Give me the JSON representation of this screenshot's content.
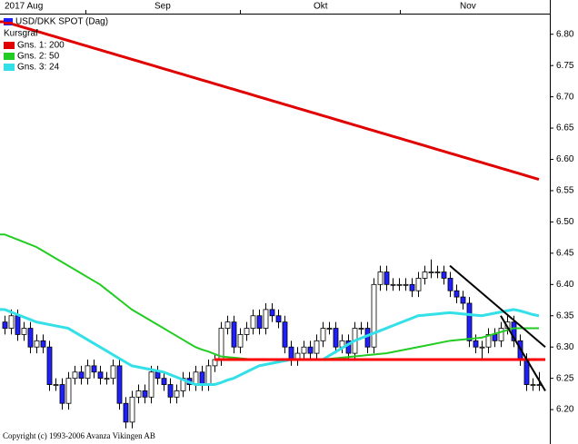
{
  "chart_data": {
    "type": "candlestick",
    "title": "USD/DKK SPOT (Dag)",
    "legend_heading": "Kursgraf",
    "copyright": "Copyright (c) 1993-2006 Avanza Vikingen AB",
    "categories": [
      "2017 Aug",
      null,
      null,
      null,
      null,
      null,
      null,
      null,
      null,
      null,
      null,
      null,
      null,
      null,
      null,
      null,
      null,
      null,
      null,
      null,
      null,
      null,
      null,
      null,
      "Sep",
      null,
      null,
      null,
      null,
      null,
      null,
      null,
      null,
      null,
      null,
      null,
      null,
      null,
      null,
      null,
      null,
      null,
      null,
      null,
      null,
      null,
      null,
      null,
      null,
      "Okt",
      null,
      null,
      null,
      null,
      null,
      null,
      null,
      null,
      null,
      null,
      null,
      null,
      null,
      null,
      null,
      null,
      null,
      null,
      null,
      null,
      null,
      null,
      "Nov",
      null,
      null,
      null,
      null,
      null,
      null,
      null,
      null,
      null,
      null,
      null,
      null
    ],
    "open": [
      6.34,
      6.33,
      6.35,
      6.32,
      6.33,
      6.3,
      6.31,
      6.3,
      6.24,
      6.24,
      6.21,
      6.25,
      6.26,
      6.25,
      6.27,
      6.26,
      6.25,
      6.25,
      6.27,
      6.21,
      6.18,
      6.22,
      6.23,
      6.22,
      6.26,
      6.25,
      6.24,
      6.22,
      6.23,
      6.25,
      6.24,
      6.26,
      6.24,
      6.27,
      6.28,
      6.33,
      6.34,
      6.3,
      6.32,
      6.33,
      6.35,
      6.33,
      6.36,
      6.35,
      6.34,
      6.3,
      6.28,
      6.29,
      6.3,
      6.29,
      6.31,
      6.33,
      6.33,
      6.3,
      6.31,
      6.29,
      6.33,
      6.33,
      6.3,
      6.4,
      6.42,
      6.4,
      6.4,
      6.4,
      6.4,
      6.39,
      6.41,
      6.42,
      6.42,
      6.42,
      6.41,
      6.39,
      6.38,
      6.37,
      6.31,
      6.3,
      6.3,
      6.32,
      6.31,
      6.33,
      6.34,
      6.31,
      6.28,
      6.24,
      6.24
    ],
    "high": [
      6.35,
      6.36,
      6.36,
      6.34,
      6.34,
      6.32,
      6.32,
      6.31,
      6.25,
      6.25,
      6.26,
      6.27,
      6.27,
      6.28,
      6.28,
      6.27,
      6.26,
      6.28,
      6.28,
      6.22,
      6.23,
      6.24,
      6.24,
      6.27,
      6.27,
      6.26,
      6.25,
      6.24,
      6.26,
      6.26,
      6.27,
      6.27,
      6.28,
      6.29,
      6.34,
      6.35,
      6.35,
      6.33,
      6.34,
      6.36,
      6.36,
      6.37,
      6.37,
      6.36,
      6.35,
      6.31,
      6.3,
      6.31,
      6.31,
      6.32,
      6.34,
      6.34,
      6.34,
      6.32,
      6.32,
      6.34,
      6.34,
      6.34,
      6.41,
      6.43,
      6.43,
      6.41,
      6.41,
      6.41,
      6.41,
      6.42,
      6.43,
      6.44,
      6.43,
      6.43,
      6.42,
      6.4,
      6.39,
      6.38,
      6.32,
      6.31,
      6.33,
      6.33,
      6.34,
      6.35,
      6.35,
      6.32,
      6.29,
      6.25,
      6.26
    ],
    "low": [
      6.32,
      6.32,
      6.31,
      6.31,
      6.29,
      6.29,
      6.29,
      6.23,
      6.23,
      6.2,
      6.2,
      6.24,
      6.24,
      6.24,
      6.25,
      6.24,
      6.24,
      6.24,
      6.2,
      6.17,
      6.17,
      6.21,
      6.21,
      6.21,
      6.24,
      6.23,
      6.21,
      6.21,
      6.22,
      6.23,
      6.23,
      6.23,
      6.23,
      6.26,
      6.27,
      6.32,
      6.29,
      6.29,
      6.31,
      6.32,
      6.32,
      6.32,
      6.34,
      6.33,
      6.29,
      6.27,
      6.27,
      6.28,
      6.28,
      6.28,
      6.3,
      6.32,
      6.29,
      6.29,
      6.28,
      6.28,
      6.32,
      6.29,
      6.29,
      6.39,
      6.39,
      6.39,
      6.39,
      6.39,
      6.38,
      6.38,
      6.4,
      6.41,
      6.41,
      6.4,
      6.38,
      6.37,
      6.36,
      6.3,
      6.29,
      6.28,
      6.29,
      6.3,
      6.3,
      6.32,
      6.3,
      6.27,
      6.23,
      6.23,
      6.23
    ],
    "close": [
      6.33,
      6.35,
      6.32,
      6.33,
      6.3,
      6.31,
      6.3,
      6.24,
      6.24,
      6.21,
      6.25,
      6.26,
      6.25,
      6.27,
      6.26,
      6.25,
      6.25,
      6.27,
      6.21,
      6.18,
      6.22,
      6.23,
      6.22,
      6.26,
      6.25,
      6.24,
      6.22,
      6.23,
      6.25,
      6.24,
      6.26,
      6.24,
      6.27,
      6.28,
      6.33,
      6.34,
      6.3,
      6.32,
      6.33,
      6.35,
      6.33,
      6.36,
      6.35,
      6.34,
      6.3,
      6.28,
      6.29,
      6.3,
      6.29,
      6.31,
      6.33,
      6.33,
      6.3,
      6.31,
      6.29,
      6.33,
      6.33,
      6.3,
      6.4,
      6.42,
      6.4,
      6.4,
      6.4,
      6.4,
      6.39,
      6.41,
      6.42,
      6.42,
      6.42,
      6.41,
      6.39,
      6.38,
      6.37,
      6.31,
      6.3,
      6.3,
      6.32,
      6.31,
      6.33,
      6.34,
      6.31,
      6.28,
      6.24,
      6.24,
      6.24
    ],
    "up_color": "#ffffff",
    "down_color": "#1f1fff",
    "series": [
      {
        "name": "Gns. 1: 200",
        "color": "#e00000",
        "values": [
          6.82,
          6.817,
          6.814,
          6.811,
          6.808,
          6.805,
          6.802,
          6.799,
          6.796,
          6.793,
          6.79,
          6.787,
          6.784,
          6.781,
          6.778,
          6.775,
          6.772,
          6.769,
          6.766,
          6.763,
          6.76,
          6.757,
          6.754,
          6.751,
          6.748,
          6.745,
          6.742,
          6.739,
          6.736,
          6.733,
          6.73,
          6.727,
          6.724,
          6.721,
          6.718,
          6.715,
          6.712,
          6.709,
          6.706,
          6.703,
          6.7,
          6.697,
          6.694,
          6.691,
          6.688,
          6.685,
          6.682,
          6.679,
          6.676,
          6.673,
          6.67,
          6.667,
          6.664,
          6.661,
          6.658,
          6.655,
          6.652,
          6.649,
          6.646,
          6.643,
          6.64,
          6.637,
          6.634,
          6.631,
          6.628,
          6.625,
          6.622,
          6.619,
          6.616,
          6.613,
          6.61,
          6.607,
          6.604,
          6.601,
          6.598,
          6.595,
          6.592,
          6.589,
          6.586,
          6.583,
          6.58,
          6.577,
          6.574,
          6.571,
          6.568
        ]
      },
      {
        "name": "Gns. 2: 50",
        "color": "#22cc22",
        "values": [
          6.48,
          6.476,
          6.472,
          6.468,
          6.464,
          6.46,
          6.454,
          6.448,
          6.442,
          6.436,
          6.43,
          6.424,
          6.418,
          6.412,
          6.406,
          6.4,
          6.392,
          6.384,
          6.376,
          6.368,
          6.36,
          6.354,
          6.348,
          6.342,
          6.336,
          6.33,
          6.324,
          6.318,
          6.312,
          6.306,
          6.3,
          6.296,
          6.293,
          6.289,
          6.285,
          6.284,
          6.283,
          6.282,
          6.281,
          6.28,
          6.28,
          6.28,
          6.28,
          6.28,
          6.28,
          6.28,
          6.28,
          6.28,
          6.28,
          6.28,
          6.28,
          6.281,
          6.282,
          6.283,
          6.284,
          6.285,
          6.286,
          6.287,
          6.288,
          6.289,
          6.29,
          6.292,
          6.294,
          6.296,
          6.298,
          6.3,
          6.302,
          6.304,
          6.306,
          6.308,
          6.31,
          6.311,
          6.312,
          6.313,
          6.314,
          6.315,
          6.318,
          6.321,
          6.324,
          6.327,
          6.33,
          6.33,
          6.33,
          6.33,
          6.33
        ]
      },
      {
        "name": "Gns. 3: 24",
        "color": "#33e0e8",
        "values": [
          6.36,
          6.356,
          6.352,
          6.348,
          6.344,
          6.34,
          6.338,
          6.336,
          6.334,
          6.332,
          6.33,
          6.324,
          6.318,
          6.312,
          6.306,
          6.3,
          6.294,
          6.288,
          6.282,
          6.276,
          6.27,
          6.268,
          6.266,
          6.264,
          6.262,
          6.26,
          6.256,
          6.252,
          6.248,
          6.244,
          6.24,
          6.24,
          6.24,
          6.24,
          6.243,
          6.247,
          6.25,
          6.255,
          6.26,
          6.265,
          6.27,
          6.272,
          6.274,
          6.276,
          6.278,
          6.28,
          6.28,
          6.28,
          6.28,
          6.28,
          6.28,
          6.286,
          6.292,
          6.298,
          6.304,
          6.31,
          6.314,
          6.318,
          6.322,
          6.326,
          6.33,
          6.334,
          6.338,
          6.342,
          6.346,
          6.35,
          6.351,
          6.352,
          6.353,
          6.354,
          6.355,
          6.354,
          6.353,
          6.352,
          6.351,
          6.35,
          6.352,
          6.354,
          6.356,
          6.358,
          6.36,
          6.358,
          6.355,
          6.352,
          6.35
        ]
      }
    ],
    "drawn_lines": [
      {
        "color": "#ff0000",
        "x": [
          33,
          85
        ],
        "y": [
          6.28,
          6.28
        ]
      },
      {
        "color": "#000000",
        "x": [
          70,
          85
        ],
        "y": [
          6.43,
          6.3
        ]
      },
      {
        "color": "#000000",
        "x": [
          78,
          85
        ],
        "y": [
          6.35,
          6.23
        ]
      }
    ],
    "ylim": [
      6.145,
      6.833
    ],
    "yticks": [
      {
        "value": 6.2,
        "label": "6.20"
      },
      {
        "value": 6.25,
        "label": "6.25"
      },
      {
        "value": 6.3,
        "label": "6.30"
      },
      {
        "value": 6.35,
        "label": "6.35"
      },
      {
        "value": 6.4,
        "label": "6.40"
      },
      {
        "value": 6.45,
        "label": "6.45"
      },
      {
        "value": 6.5,
        "label": "6.50"
      },
      {
        "value": 6.55,
        "label": "6.55"
      },
      {
        "value": 6.6,
        "label": "6.60"
      },
      {
        "value": 6.65,
        "label": "6.65"
      },
      {
        "value": 6.7,
        "label": "6.70"
      },
      {
        "value": 6.75,
        "label": "6.75"
      },
      {
        "value": 6.8,
        "label": "6.80"
      }
    ],
    "grid": false
  }
}
